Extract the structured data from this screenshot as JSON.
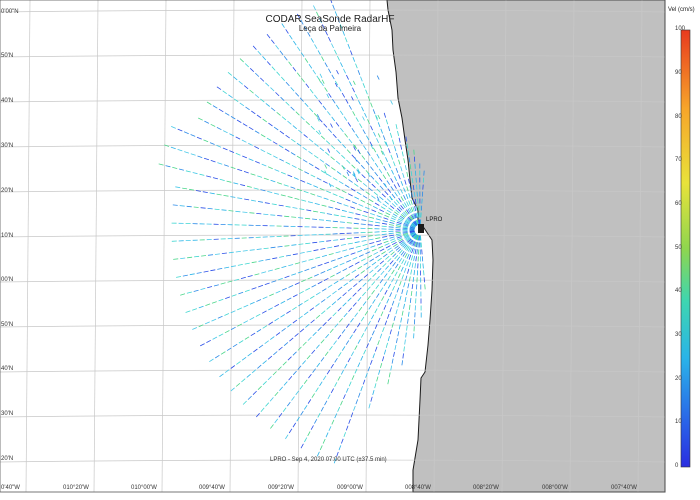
{
  "title": "CODAR SeaSonde RadarHF",
  "subtitle": "Leça da Palmeira",
  "station": "LPRO",
  "timestamp": "LPRO - Sep 4, 2020 07:00 UTC (±37.5 min)",
  "lat_labels": [
    "0'00\"N",
    "50'N",
    "40'N",
    "30'N",
    "20'N",
    "10'N",
    "00'N",
    "50'N",
    "40'N",
    "30'N",
    "20'N"
  ],
  "lon_labels": [
    "0'40\"W",
    "010°20'W",
    "010°00'W",
    "009°40'W",
    "009°20'W",
    "009°00'W",
    "008°40'W",
    "008°20'W",
    "008°00'W",
    "007°40'W"
  ],
  "colorbar": {
    "title": "Vel (cm/s)",
    "ticks": [
      "100",
      "90",
      "80",
      "70",
      "60",
      "50",
      "40",
      "30",
      "20",
      "10",
      "0"
    ],
    "colors": [
      "#e83a1e",
      "#f7a52a",
      "#e8e23a",
      "#8fd64e",
      "#3ed6b0",
      "#2ab4e8",
      "#2a62e8",
      "#2a2ee0"
    ]
  },
  "colors": {
    "land": "#c0c0c0",
    "coast": "#1a1a1a",
    "grid": "#c8c8c8"
  }
}
